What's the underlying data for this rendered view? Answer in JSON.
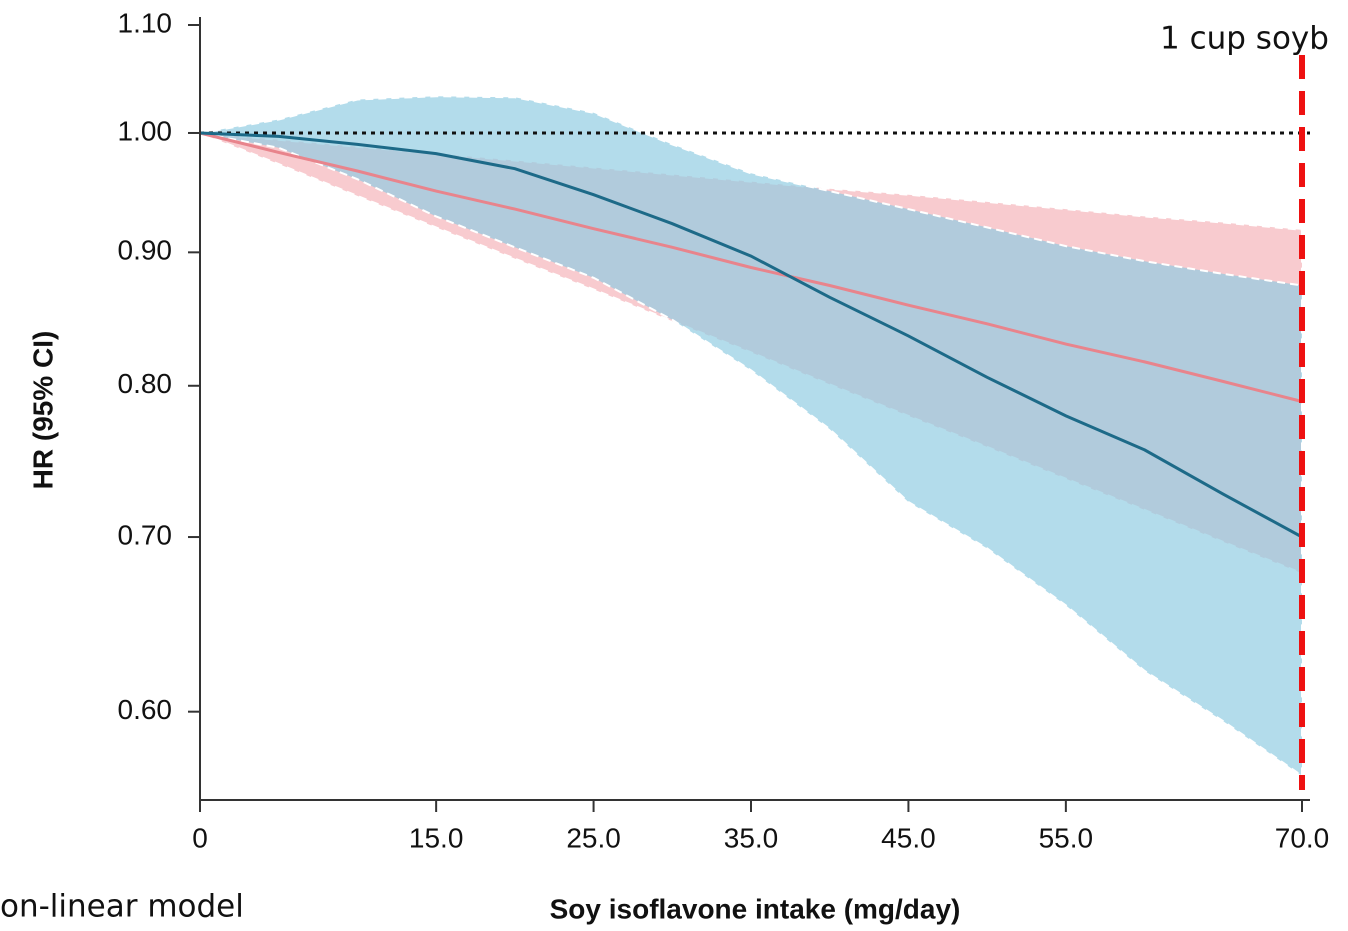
{
  "chart_data": {
    "type": "line",
    "x_label": "Soy isoflavone intake (mg/day)",
    "y_label": "HR (95% CI)",
    "log_y": true,
    "x": [
      0,
      5,
      10,
      15,
      20,
      25,
      30,
      35,
      40,
      45,
      50,
      55,
      60,
      65,
      70
    ],
    "series": [
      {
        "color": "#e8848c",
        "band_color": "#f6b9bf",
        "values": [
          1,
          0.983,
          0.967,
          0.95,
          0.935,
          0.919,
          0.904,
          0.888,
          0.874,
          0.859,
          0.845,
          0.83,
          0.817,
          0.803,
          0.789
        ],
        "upper": [
          1,
          0.994,
          0.988,
          0.982,
          0.976,
          0.97,
          0.964,
          0.958,
          0.952,
          0.947,
          0.941,
          0.935,
          0.929,
          0.924,
          0.918
        ],
        "lower": [
          1,
          0.973,
          0.946,
          0.92,
          0.895,
          0.871,
          0.847,
          0.824,
          0.801,
          0.779,
          0.758,
          0.737,
          0.717,
          0.697,
          0.678
        ]
      },
      {
        "color": "#1d6a88",
        "band_color": "#8fcbe2",
        "values": [
          1,
          0.997,
          0.99,
          0.982,
          0.969,
          0.947,
          0.923,
          0.897,
          0.865,
          0.836,
          0.806,
          0.779,
          0.756,
          0.727,
          0.7
        ],
        "upper": [
          1,
          1.012,
          1.03,
          1.033,
          1.032,
          1.018,
          0.99,
          0.965,
          0.95,
          0.935,
          0.92,
          0.905,
          0.893,
          0.883,
          0.874
        ],
        "lower": [
          1,
          0.987,
          0.96,
          0.929,
          0.904,
          0.88,
          0.848,
          0.811,
          0.77,
          0.722,
          0.693,
          0.659,
          0.622,
          0.595,
          0.567
        ]
      }
    ],
    "xlim": [
      0,
      70
    ],
    "ylim": [
      0.555,
      1.1
    ],
    "xticks": [
      0,
      {
        "value": 15,
        "label": "15.0"
      },
      {
        "value": 25,
        "label": "25.0"
      },
      {
        "value": 35,
        "label": "35.0"
      },
      {
        "value": 45,
        "label": "45.0"
      },
      {
        "value": 55,
        "label": "55.0"
      },
      {
        "value": 70,
        "label": "70.0"
      }
    ],
    "yticks": [
      {
        "value": 0.6,
        "label": "0.60"
      },
      {
        "value": 0.7,
        "label": "0.70"
      },
      {
        "value": 0.8,
        "label": "0.80"
      },
      {
        "value": 0.9,
        "label": "0.90"
      },
      {
        "value": 1.0,
        "label": "1.00"
      },
      {
        "value": 1.1,
        "label": "1.10"
      }
    ],
    "reference_y": 1.0,
    "marker_line": {
      "x": 70,
      "label": "1 cup soyb",
      "color": "#ee1111"
    },
    "model_note": "on-linear model"
  }
}
